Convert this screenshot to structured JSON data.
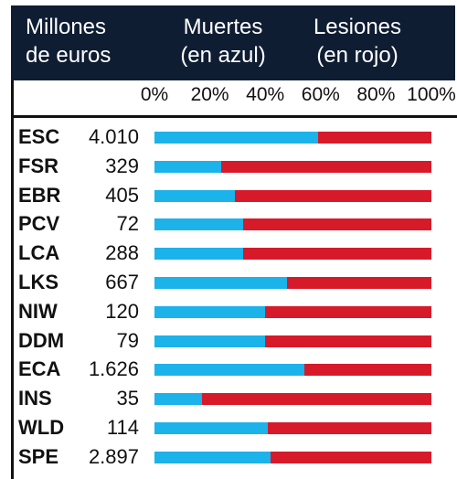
{
  "header": {
    "left": "Millones\nde euros",
    "middle": "Muertes\n(en azul)",
    "right": "Lesiones\n(en rojo)"
  },
  "colors": {
    "header_bg": "#0f1d33",
    "muertes": "#1cb2ea",
    "lesiones": "#d71a2a"
  },
  "chart_data": {
    "type": "bar",
    "orientation": "horizontal",
    "stacked": true,
    "xlim": [
      0,
      100
    ],
    "x_ticks": [
      "0%",
      "20%",
      "40%",
      "60%",
      "80%",
      "100%"
    ],
    "categories": [
      "ESC",
      "FSR",
      "EBR",
      "PCV",
      "LCA",
      "LKS",
      "NIW",
      "DDM",
      "ECA",
      "INS",
      "WLD",
      "SPE"
    ],
    "millones_de_euros": [
      "4.010",
      "329",
      "405",
      "72",
      "288",
      "667",
      "120",
      "79",
      "1.626",
      "35",
      "114",
      "2.897"
    ],
    "series": [
      {
        "name": "Muertes",
        "color": "#1cb2ea",
        "values": [
          59,
          24,
          29,
          32,
          32,
          48,
          40,
          40,
          54,
          17,
          41,
          42
        ]
      },
      {
        "name": "Lesiones",
        "color": "#d71a2a",
        "values": [
          41,
          76,
          71,
          68,
          68,
          52,
          60,
          60,
          46,
          83,
          59,
          58
        ]
      }
    ]
  }
}
